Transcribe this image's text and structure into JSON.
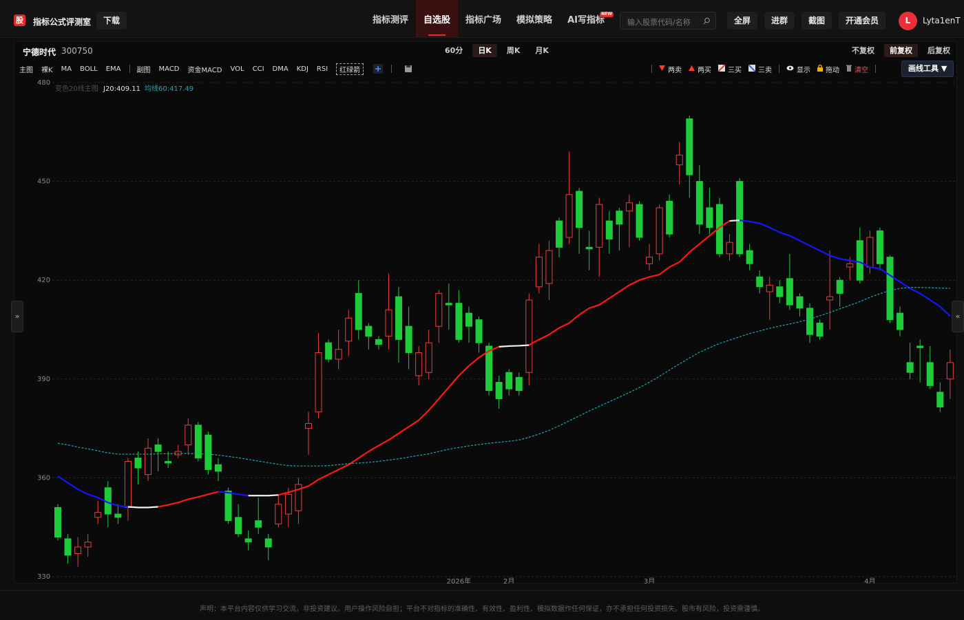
{
  "header": {
    "logo": "股",
    "brand": "指标公式评测室",
    "download": "下载",
    "nav": [
      {
        "label": "指标测评"
      },
      {
        "label": "自选股",
        "active": true
      },
      {
        "label": "指标广场"
      },
      {
        "label": "模拟策略"
      },
      {
        "label": "AI写指标",
        "badge": "NEW"
      }
    ],
    "search_placeholder": "输入股票代码/名称",
    "buttons": [
      "全屏",
      "进群",
      "截图",
      "开通会员"
    ],
    "avatar": "L",
    "user": "Lyta1enT"
  },
  "toolbar": {
    "stock_name": "宁德时代",
    "stock_code": "300750",
    "periods": [
      {
        "label": "60分"
      },
      {
        "label": "日K",
        "active": true
      },
      {
        "label": "周K"
      },
      {
        "label": "月K"
      }
    ],
    "adjustments": [
      {
        "label": "不复权"
      },
      {
        "label": "前复权",
        "active": true
      },
      {
        "label": "后复权"
      }
    ],
    "main_indicators": [
      "主图",
      "裸K",
      "MA",
      "BOLL",
      "EMA"
    ],
    "sub_indicators": [
      "副图",
      "MACD",
      "资金MACD",
      "VOL",
      "CCI",
      "DMA",
      "KDJ",
      "RSI"
    ],
    "signal_indicator": "红绿箭",
    "draw_tools": [
      "两卖",
      "两买",
      "三买",
      "三卖",
      "显示",
      "拖动",
      "清空"
    ],
    "draw_menu": "画线工具 ▼"
  },
  "chart_data": {
    "type": "candlestick",
    "legend_title": "变色20线主图",
    "categories": [
      null,
      null,
      null,
      null,
      null,
      null,
      null,
      null,
      null,
      null,
      null,
      null,
      null,
      null,
      null,
      null,
      null,
      null,
      null,
      null,
      null,
      null,
      null,
      null,
      null,
      null,
      null,
      null,
      null,
      null,
      null,
      null,
      null,
      null,
      null,
      null,
      null,
      null,
      null,
      null,
      "2026年",
      null,
      null,
      null,
      null,
      "2月",
      null,
      null,
      null,
      null,
      null,
      null,
      null,
      null,
      null,
      null,
      null,
      null,
      null,
      "3月",
      null,
      null,
      null,
      null,
      null,
      null,
      null,
      null,
      null,
      null,
      null,
      null,
      null,
      null,
      null,
      null,
      null,
      null,
      null,
      null,
      null,
      "4月",
      null,
      null,
      null,
      null,
      null,
      null,
      null,
      null
    ],
    "open": [
      351,
      341.5,
      337,
      339,
      348,
      357,
      349,
      351,
      366,
      361,
      370,
      365,
      367,
      370,
      376,
      373,
      364,
      356,
      348,
      341.5,
      347,
      341.5,
      346,
      349,
      350,
      375,
      380,
      401,
      396,
      401.5,
      416,
      406,
      402,
      403,
      415,
      406,
      391,
      392,
      406,
      413,
      413,
      410,
      408,
      400,
      389,
      392,
      390.5,
      392,
      418,
      419,
      438,
      433,
      447,
      430,
      430,
      438,
      441,
      441,
      443,
      425,
      428,
      444,
      455,
      469,
      450,
      442,
      443,
      428,
      450,
      429,
      421,
      416.5,
      418,
      420.5,
      415,
      411.5,
      407,
      414,
      420,
      424,
      432,
      424,
      435,
      427,
      410,
      395,
      400,
      395,
      386,
      390
    ],
    "high": [
      352,
      343,
      342,
      343,
      353,
      359,
      352,
      366,
      368,
      372,
      372,
      368,
      370,
      378,
      377,
      374,
      366,
      357,
      352,
      344,
      354,
      343,
      355,
      357,
      360,
      380,
      404,
      402,
      405,
      411,
      420,
      407,
      403,
      422,
      418,
      412,
      400,
      405,
      417,
      419,
      417,
      412,
      409,
      401,
      391,
      393,
      392,
      416,
      431,
      432,
      439,
      459,
      448,
      435,
      445,
      441,
      442,
      446,
      444,
      431,
      443,
      446,
      462,
      470,
      455,
      448,
      445,
      434,
      451,
      431,
      423,
      421,
      420,
      428,
      416,
      413,
      408,
      429,
      421,
      427,
      436,
      435,
      436,
      427.5,
      412,
      401,
      402,
      400,
      389,
      399
    ],
    "low": [
      341,
      334,
      333,
      336,
      346,
      345,
      346,
      347,
      358,
      359,
      362,
      363,
      366,
      367,
      365,
      361,
      359,
      346,
      342,
      338,
      343,
      335,
      345,
      345,
      346,
      367,
      378,
      395,
      393,
      397,
      402,
      399,
      399,
      399,
      395,
      393,
      388,
      390,
      401,
      405,
      401,
      401,
      398,
      385,
      381,
      385,
      385,
      388,
      416,
      414,
      427,
      431,
      428,
      423,
      421,
      428,
      429,
      430,
      432,
      423,
      426,
      433,
      449,
      445,
      434,
      434,
      427,
      426,
      427,
      423,
      416,
      408,
      413,
      411,
      409,
      401,
      402,
      405,
      412,
      420,
      419,
      422,
      423,
      407,
      403,
      390,
      389,
      387,
      380,
      384
    ],
    "close": [
      342,
      336.5,
      339,
      340.5,
      349.5,
      349,
      348,
      365,
      363,
      369,
      368,
      364.5,
      368,
      376,
      366,
      362.5,
      362,
      347,
      343,
      340.5,
      345,
      339,
      352,
      355,
      358,
      376.5,
      398,
      396,
      399,
      408.5,
      405,
      403,
      400.5,
      411,
      402,
      398,
      398,
      401,
      416,
      412.5,
      402,
      406,
      401,
      386.5,
      384,
      387,
      386.5,
      414,
      427,
      429,
      430,
      446,
      436,
      429.5,
      443,
      432.5,
      437,
      443.5,
      433,
      427,
      442,
      434,
      458,
      452,
      437,
      436,
      428,
      431.5,
      428,
      425,
      418,
      418.5,
      415,
      412.5,
      411.5,
      403.5,
      403,
      415,
      416,
      425,
      420,
      433,
      425,
      408,
      405,
      392,
      399.5,
      388,
      381.5,
      395
    ],
    "up_color": "#e8403f",
    "down_color": "#1ecc3a",
    "lines": [
      {
        "legend_label": "J20:409.11",
        "colors": {
          "up": "#ff1616",
          "down": "#1414ff",
          "flat": "#f2f2f2"
        },
        "legend_color": "#e6e6e6",
        "values": [
          360.5,
          358.5,
          356.5,
          355,
          354,
          352.5,
          351.5,
          351.2,
          351,
          351,
          351.2,
          351.8,
          352.5,
          353.5,
          354.2,
          355,
          355.8,
          355.5,
          355,
          354.6,
          354.6,
          354.6,
          354.8,
          355.6,
          356.5,
          357.5,
          359.5,
          361,
          362.5,
          364,
          366,
          368,
          369.8,
          371.5,
          373.5,
          375.5,
          377.5,
          380.5,
          384,
          387.5,
          391,
          394,
          396.5,
          398.5,
          399.8,
          400,
          400.1,
          400.3,
          402,
          403.5,
          405.5,
          407,
          409.5,
          411.5,
          412.5,
          414.5,
          416.5,
          418.5,
          420,
          421,
          421.7,
          424,
          425.5,
          428.5,
          431,
          433.5,
          436,
          438,
          438.2,
          437.8,
          437.3,
          436,
          434.5,
          433.5,
          432,
          430.5,
          429,
          427.5,
          426.5,
          426,
          425.5,
          424,
          423.5,
          421.5,
          419.5,
          417.5,
          416,
          414,
          412,
          409.11
        ]
      },
      {
        "legend_label": "均线60:417.49",
        "color": "#1aa9b5",
        "dashed": true,
        "values": [
          370.5,
          370,
          369.3,
          368.8,
          368.2,
          367.6,
          367.2,
          367.2,
          367.2,
          367.2,
          367.3,
          367.3,
          367.4,
          367.4,
          367.3,
          367.2,
          366.9,
          366.5,
          366.1,
          365.6,
          365.1,
          364.6,
          364.1,
          363.7,
          363.6,
          363.6,
          363.6,
          363.7,
          364,
          364.3,
          364.5,
          364.7,
          365,
          365.4,
          365.8,
          366.3,
          366.8,
          367.3,
          368,
          368.7,
          369.2,
          369.7,
          370.1,
          370.5,
          370.8,
          371.1,
          371.5,
          372.3,
          373.3,
          374.4,
          375.8,
          377.3,
          378.8,
          380.3,
          381.7,
          383.1,
          384.5,
          385.9,
          387.4,
          389,
          390.8,
          392.7,
          394.6,
          396.4,
          398.1,
          399.5,
          400.8,
          401.8,
          402.8,
          403.8,
          404.6,
          405.4,
          406.1,
          406.7,
          407.4,
          408.2,
          409.2,
          410.2,
          411.3,
          412.4,
          413.5,
          414.8,
          415.9,
          416.9,
          417.5,
          417.8,
          417.8,
          417.7,
          417.6,
          417.49
        ]
      }
    ],
    "ylim": [
      330,
      480
    ],
    "yticks": [
      330,
      360,
      390,
      420,
      450,
      480
    ],
    "grid": true
  },
  "footer": {
    "disclaimer": "声明：本平台内容仅供学习交流，非投资建议。用户操作风险自担；平台不对指标的准确性、有效性、盈利性、模拟数据作任何保证，亦不承担任何投资损失。股市有风险，投资需谨慎。"
  }
}
